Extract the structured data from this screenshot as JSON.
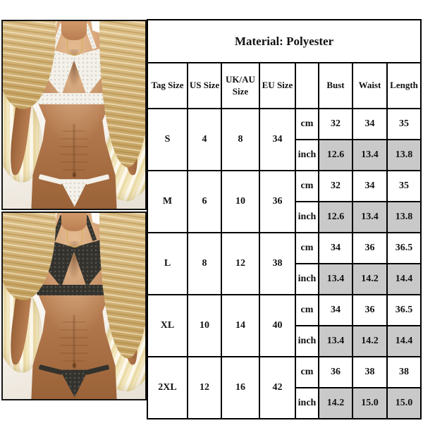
{
  "palette": {
    "page_bg": "#ffffff",
    "table_border": "#000000",
    "table_text": "#111111",
    "inch_cell_bg": "#c9c9c9",
    "skin": "#b97e52",
    "skin_light": "#d1996a",
    "skin_dark": "#9a6238",
    "hair": "#e0c48e",
    "hair_dark": "#c3a05e",
    "shirt_cream": "#f3e7c0",
    "shirt_white": "#fbf7ea",
    "gold": "#d4af52"
  },
  "photos": [
    {
      "name": "white-lace-lingerie-photo",
      "label": "Model wearing white lace halter bralette and thong set",
      "lace_color": "#f3f1ea",
      "lace_detail_color": "#d9d4c8"
    },
    {
      "name": "black-lace-lingerie-photo",
      "label": "Model wearing black lace halter bralette and thong set",
      "lace_color": "#33322d",
      "lace_detail_color": "#55544c"
    }
  ],
  "chart": {
    "title": "Material: Polyester",
    "columns": [
      "Tag Size",
      "US Size",
      "UK/AU Size",
      "EU Size",
      "",
      "Bust",
      "Waist",
      "Length"
    ],
    "unit_labels": [
      "cm",
      "inch"
    ],
    "sizes": [
      {
        "tag": "S",
        "us": "4",
        "uk_au": "8",
        "eu": "34",
        "cm": {
          "bust": "32",
          "waist": "34",
          "length": "35"
        },
        "inch": {
          "bust": "12.6",
          "waist": "13.4",
          "length": "13.8"
        }
      },
      {
        "tag": "M",
        "us": "6",
        "uk_au": "10",
        "eu": "36",
        "cm": {
          "bust": "32",
          "waist": "34",
          "length": "35"
        },
        "inch": {
          "bust": "12.6",
          "waist": "13.4",
          "length": "13.8"
        }
      },
      {
        "tag": "L",
        "us": "8",
        "uk_au": "12",
        "eu": "38",
        "cm": {
          "bust": "34",
          "waist": "36",
          "length": "36.5"
        },
        "inch": {
          "bust": "13.4",
          "waist": "14.2",
          "length": "14.4"
        }
      },
      {
        "tag": "XL",
        "us": "10",
        "uk_au": "14",
        "eu": "40",
        "cm": {
          "bust": "34",
          "waist": "36",
          "length": "36.5"
        },
        "inch": {
          "bust": "13.4",
          "waist": "14.2",
          "length": "14.4"
        }
      },
      {
        "tag": "2XL",
        "us": "12",
        "uk_au": "16",
        "eu": "42",
        "cm": {
          "bust": "36",
          "waist": "38",
          "length": "38"
        },
        "inch": {
          "bust": "14.2",
          "waist": "15.0",
          "length": "15.0"
        }
      }
    ]
  }
}
